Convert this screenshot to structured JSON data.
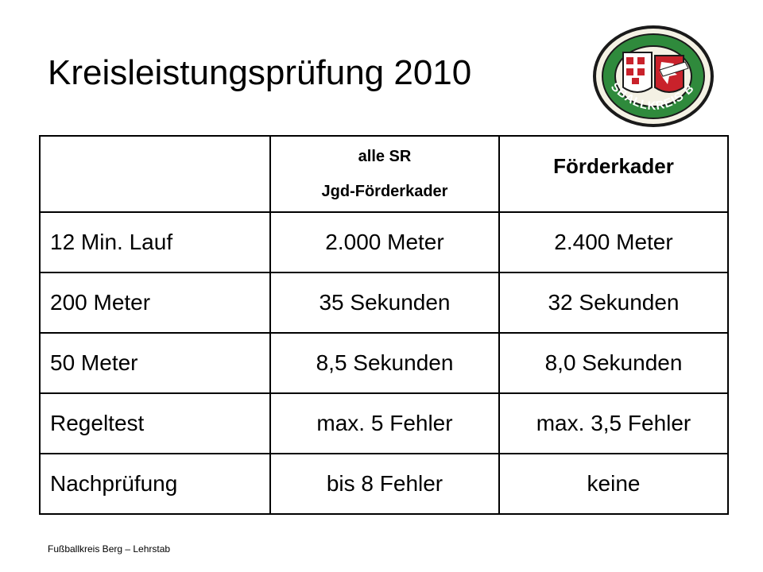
{
  "slide": {
    "title": "Kreisleistungsprüfung 2010",
    "footer": "Fußballkreis Berg – Lehrstab"
  },
  "logo": {
    "icon": "fussballkreis-berg-emblem",
    "text": "FUSSBALLKREIS BERG",
    "colors": {
      "ring": "#2f8a3c",
      "shield_red": "#c9222b",
      "outline": "#1a1a1a"
    }
  },
  "table": {
    "header": {
      "label": "",
      "col_a_line1": "alle SR",
      "col_a_line2": "Jgd-Förderkader",
      "col_b": "Förderkader"
    },
    "rows": [
      {
        "label": "12 Min. Lauf",
        "a": "2.000 Meter",
        "b": "2.400 Meter"
      },
      {
        "label": "200 Meter",
        "a": "35 Sekunden",
        "b": "32 Sekunden"
      },
      {
        "label": "50 Meter",
        "a": "8,5 Sekunden",
        "b": "8,0 Sekunden"
      },
      {
        "label": "Regeltest",
        "a": "max. 5 Fehler",
        "b": "max. 3,5 Fehler"
      },
      {
        "label": "Nachprüfung",
        "a": "bis 8 Fehler",
        "b": "keine"
      }
    ]
  }
}
